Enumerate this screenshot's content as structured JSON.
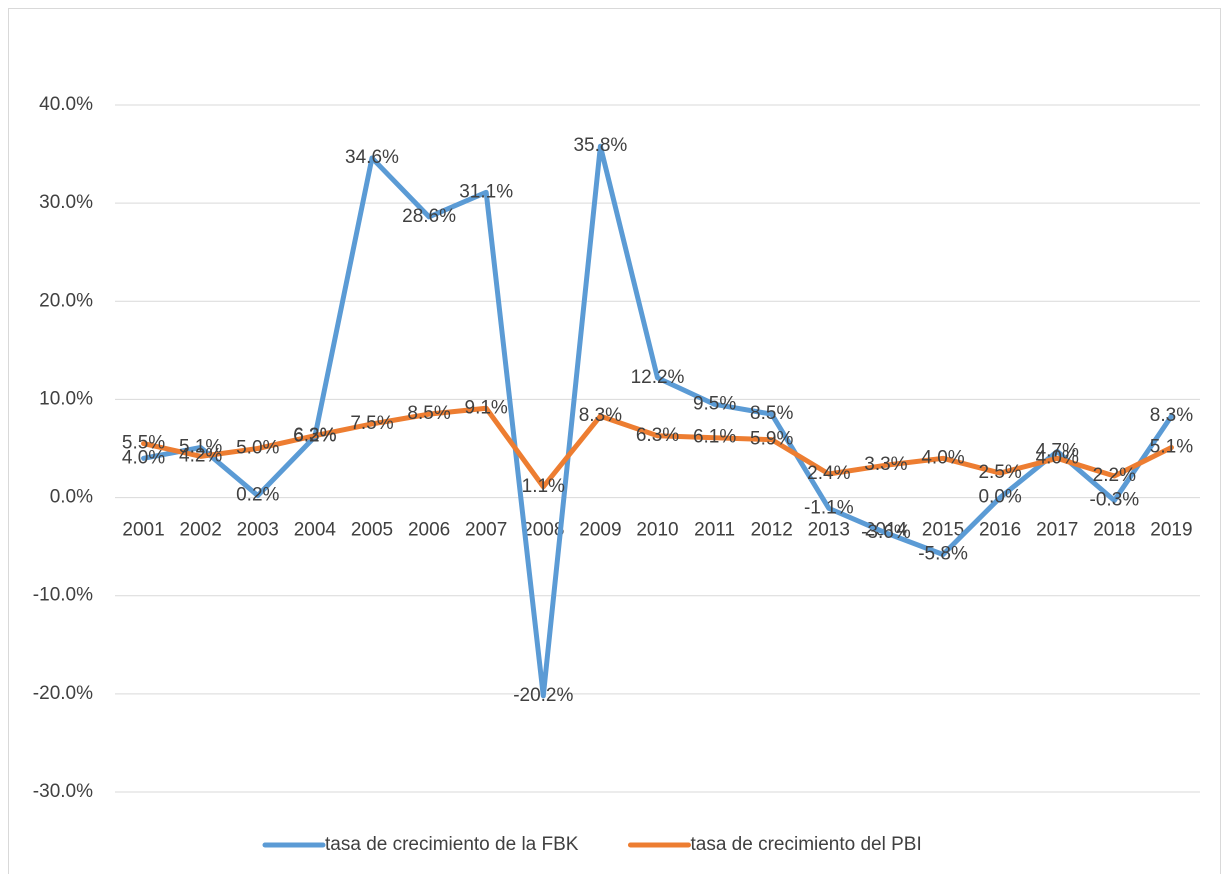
{
  "chart_data": {
    "type": "line",
    "categories": [
      "2001",
      "2002",
      "2003",
      "2004",
      "2005",
      "2006",
      "2007",
      "2008",
      "2009",
      "2010",
      "2011",
      "2012",
      "2013",
      "2014",
      "2015",
      "2016",
      "2017",
      "2018",
      "2019"
    ],
    "series": [
      {
        "name": "tasa de crecimiento de la FBK",
        "color": "#5b9bd5",
        "values": [
          4.0,
          5.1,
          0.2,
          6.2,
          34.6,
          28.6,
          31.1,
          -20.2,
          35.8,
          12.2,
          9.5,
          8.5,
          -1.1,
          -3.6,
          -5.8,
          0.0,
          4.7,
          -0.3,
          8.3
        ],
        "value_labels": [
          "4.0%",
          "5.1%",
          "0.2%",
          "6.2%",
          "34.6%",
          "28.6%",
          "31.1%",
          "-20.2%",
          "35.8%",
          "12.2%",
          "9.5%",
          "8.5%",
          "-1.1%",
          "-3.6%",
          "-5.8%",
          "0.0%",
          "4.7%",
          "-0.3%",
          "8.3%"
        ]
      },
      {
        "name": "tasa de crecimiento del PBI",
        "color": "#ed7d31",
        "values": [
          5.5,
          4.2,
          5.0,
          6.3,
          7.5,
          8.5,
          9.1,
          1.1,
          8.3,
          6.3,
          6.1,
          5.9,
          2.4,
          3.3,
          4.0,
          2.5,
          4.0,
          2.2,
          5.1
        ],
        "value_labels": [
          "5.5%",
          "4.2%",
          "5.0%",
          "6.3%",
          "7.5%",
          "8.5%",
          "9.1%",
          "1.1%",
          "8.3%",
          "6.3%",
          "6.1%",
          "5.9%",
          "2.4%",
          "3.3%",
          "4.0%",
          "2.5%",
          "4.0%",
          "2.2%",
          "5.1%"
        ]
      }
    ],
    "ylim": [
      -30,
      40
    ],
    "yticks": [
      {
        "value": -30,
        "label": "-30.0%"
      },
      {
        "value": -20,
        "label": "-20.0%"
      },
      {
        "value": -10,
        "label": "-10.0%"
      },
      {
        "value": 0,
        "label": "0.0%"
      },
      {
        "value": 10,
        "label": "10.0%"
      },
      {
        "value": 20,
        "label": "20.0%"
      },
      {
        "value": 30,
        "label": "30.0%"
      },
      {
        "value": 40,
        "label": "40.0%"
      }
    ],
    "grid": true,
    "legend": "bottom"
  }
}
